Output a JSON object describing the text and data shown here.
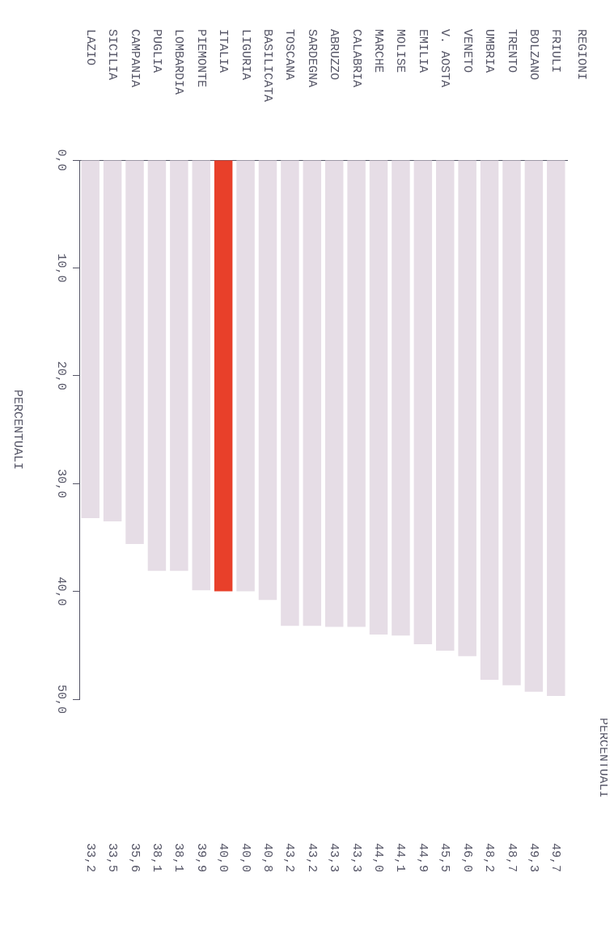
{
  "chart_data": {
    "type": "bar",
    "ylabel": "PERCENTUALI",
    "annotations": [
      "REGIONI",
      "PERCENTUALI"
    ],
    "categories": [
      "LAZIO",
      "SICILIA",
      "CAMPANIA",
      "PUGLIA",
      "LOMBARDIA",
      "PIEMONTE",
      "ITALIA",
      "LIGURIA",
      "BASILICATA",
      "TOSCANA",
      "SARDEGNA",
      "ABRUZZO",
      "CALABRIA",
      "MARCHE",
      "MOLISE",
      "EMILIA",
      "V. AOSTA",
      "VENETO",
      "UMBRIA",
      "TRENTO",
      "BOLZANO",
      "FRIULI"
    ],
    "values": [
      33.2,
      33.5,
      35.6,
      38.1,
      38.1,
      39.9,
      40.0,
      40.0,
      40.8,
      43.2,
      43.2,
      43.3,
      43.3,
      44.0,
      44.1,
      44.9,
      45.5,
      46.0,
      48.2,
      48.7,
      49.3,
      49.7
    ],
    "value_labels": [
      "33,2",
      "33,5",
      "35,6",
      "38,1",
      "38,1",
      "39,9",
      "40,0",
      "40,0",
      "40,8",
      "43,2",
      "43,2",
      "43,3",
      "43,3",
      "44,0",
      "44,1",
      "44,9",
      "45,5",
      "46,0",
      "48,2",
      "48,7",
      "49,3",
      "49,7"
    ],
    "colors": [
      "#e6dde6",
      "#e6dde6",
      "#e6dde6",
      "#e6dde6",
      "#e6dde6",
      "#e6dde6",
      "#e8402a",
      "#e6dde6",
      "#e6dde6",
      "#e6dde6",
      "#e6dde6",
      "#e6dde6",
      "#e6dde6",
      "#e6dde6",
      "#e6dde6",
      "#e6dde6",
      "#e6dde6",
      "#e6dde6",
      "#e6dde6",
      "#e6dde6",
      "#e6dde6",
      "#e6dde6"
    ],
    "ylim": [
      50,
      0
    ],
    "yticks": [
      {
        "value": 0,
        "label": "0,0"
      },
      {
        "value": 10,
        "label": "10,0"
      },
      {
        "value": 20,
        "label": "20,0"
      },
      {
        "value": 30,
        "label": "30,0"
      },
      {
        "value": 40,
        "label": "40,0"
      },
      {
        "value": 50,
        "label": "50,0"
      }
    ],
    "grid": false
  }
}
